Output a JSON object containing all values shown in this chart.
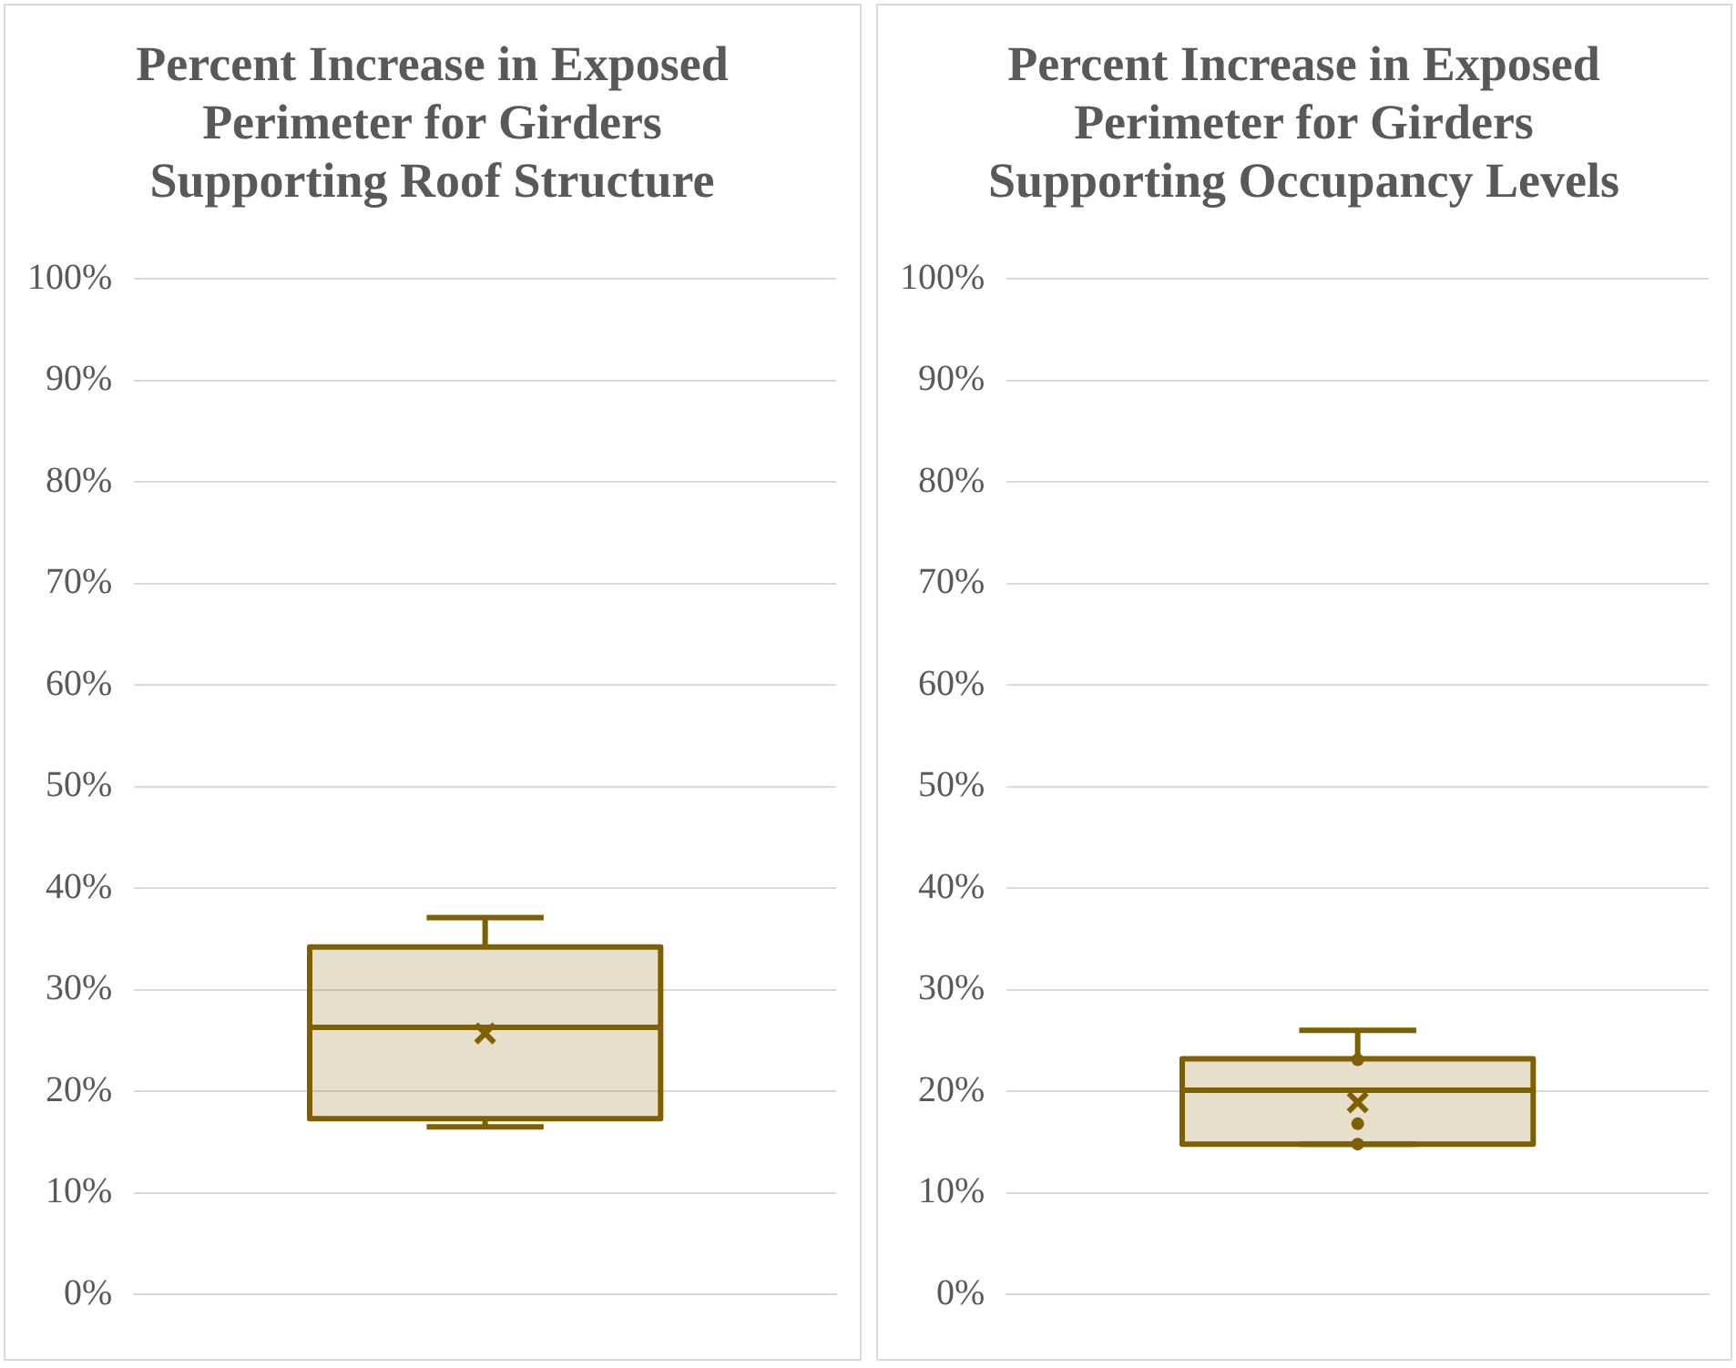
{
  "chart_data": [
    {
      "type": "box",
      "title": "Percent Increase in Exposed Perimeter for Girders Supporting Roof Structure",
      "categories": [
        null
      ],
      "ylim": [
        0,
        100
      ],
      "yticks": [
        {
          "value": 0,
          "label": "0%"
        },
        {
          "value": 10,
          "label": "10%"
        },
        {
          "value": 20,
          "label": "20%"
        },
        {
          "value": 30,
          "label": "30%"
        },
        {
          "value": 40,
          "label": "40%"
        },
        {
          "value": 50,
          "label": "50%"
        },
        {
          "value": 60,
          "label": "60%"
        },
        {
          "value": 70,
          "label": "70%"
        },
        {
          "value": 80,
          "label": "80%"
        },
        {
          "value": 90,
          "label": "90%"
        },
        {
          "value": 100,
          "label": "100%"
        }
      ],
      "grid": "y",
      "series": [
        {
          "color": "#7f6000",
          "boxes": [
            {
              "low": 16.5,
              "q1": 17.3,
              "median": 26.3,
              "q3": 34.2,
              "high": 37.1,
              "mean": 25.7
            }
          ]
        }
      ]
    },
    {
      "type": "box",
      "title": "Percent Increase in Exposed Perimeter for Girders Supporting Occupancy Levels",
      "categories": [
        null
      ],
      "ylim": [
        0,
        100
      ],
      "yticks": [
        {
          "value": 0,
          "label": "0%"
        },
        {
          "value": 10,
          "label": "10%"
        },
        {
          "value": 20,
          "label": "20%"
        },
        {
          "value": 30,
          "label": "30%"
        },
        {
          "value": 40,
          "label": "40%"
        },
        {
          "value": 50,
          "label": "50%"
        },
        {
          "value": 60,
          "label": "60%"
        },
        {
          "value": 70,
          "label": "70%"
        },
        {
          "value": 80,
          "label": "80%"
        },
        {
          "value": 90,
          "label": "90%"
        },
        {
          "value": 100,
          "label": "100%"
        }
      ],
      "grid": "y",
      "series": [
        {
          "color": "#7f6000",
          "boxes": [
            {
              "low": 14.8,
              "q1": 14.8,
              "median": 20.1,
              "q3": 23.2,
              "high": 26.0,
              "mean": 18.9,
              "outliers": [
                23.1,
                16.8,
                14.8
              ]
            }
          ]
        }
      ]
    }
  ]
}
